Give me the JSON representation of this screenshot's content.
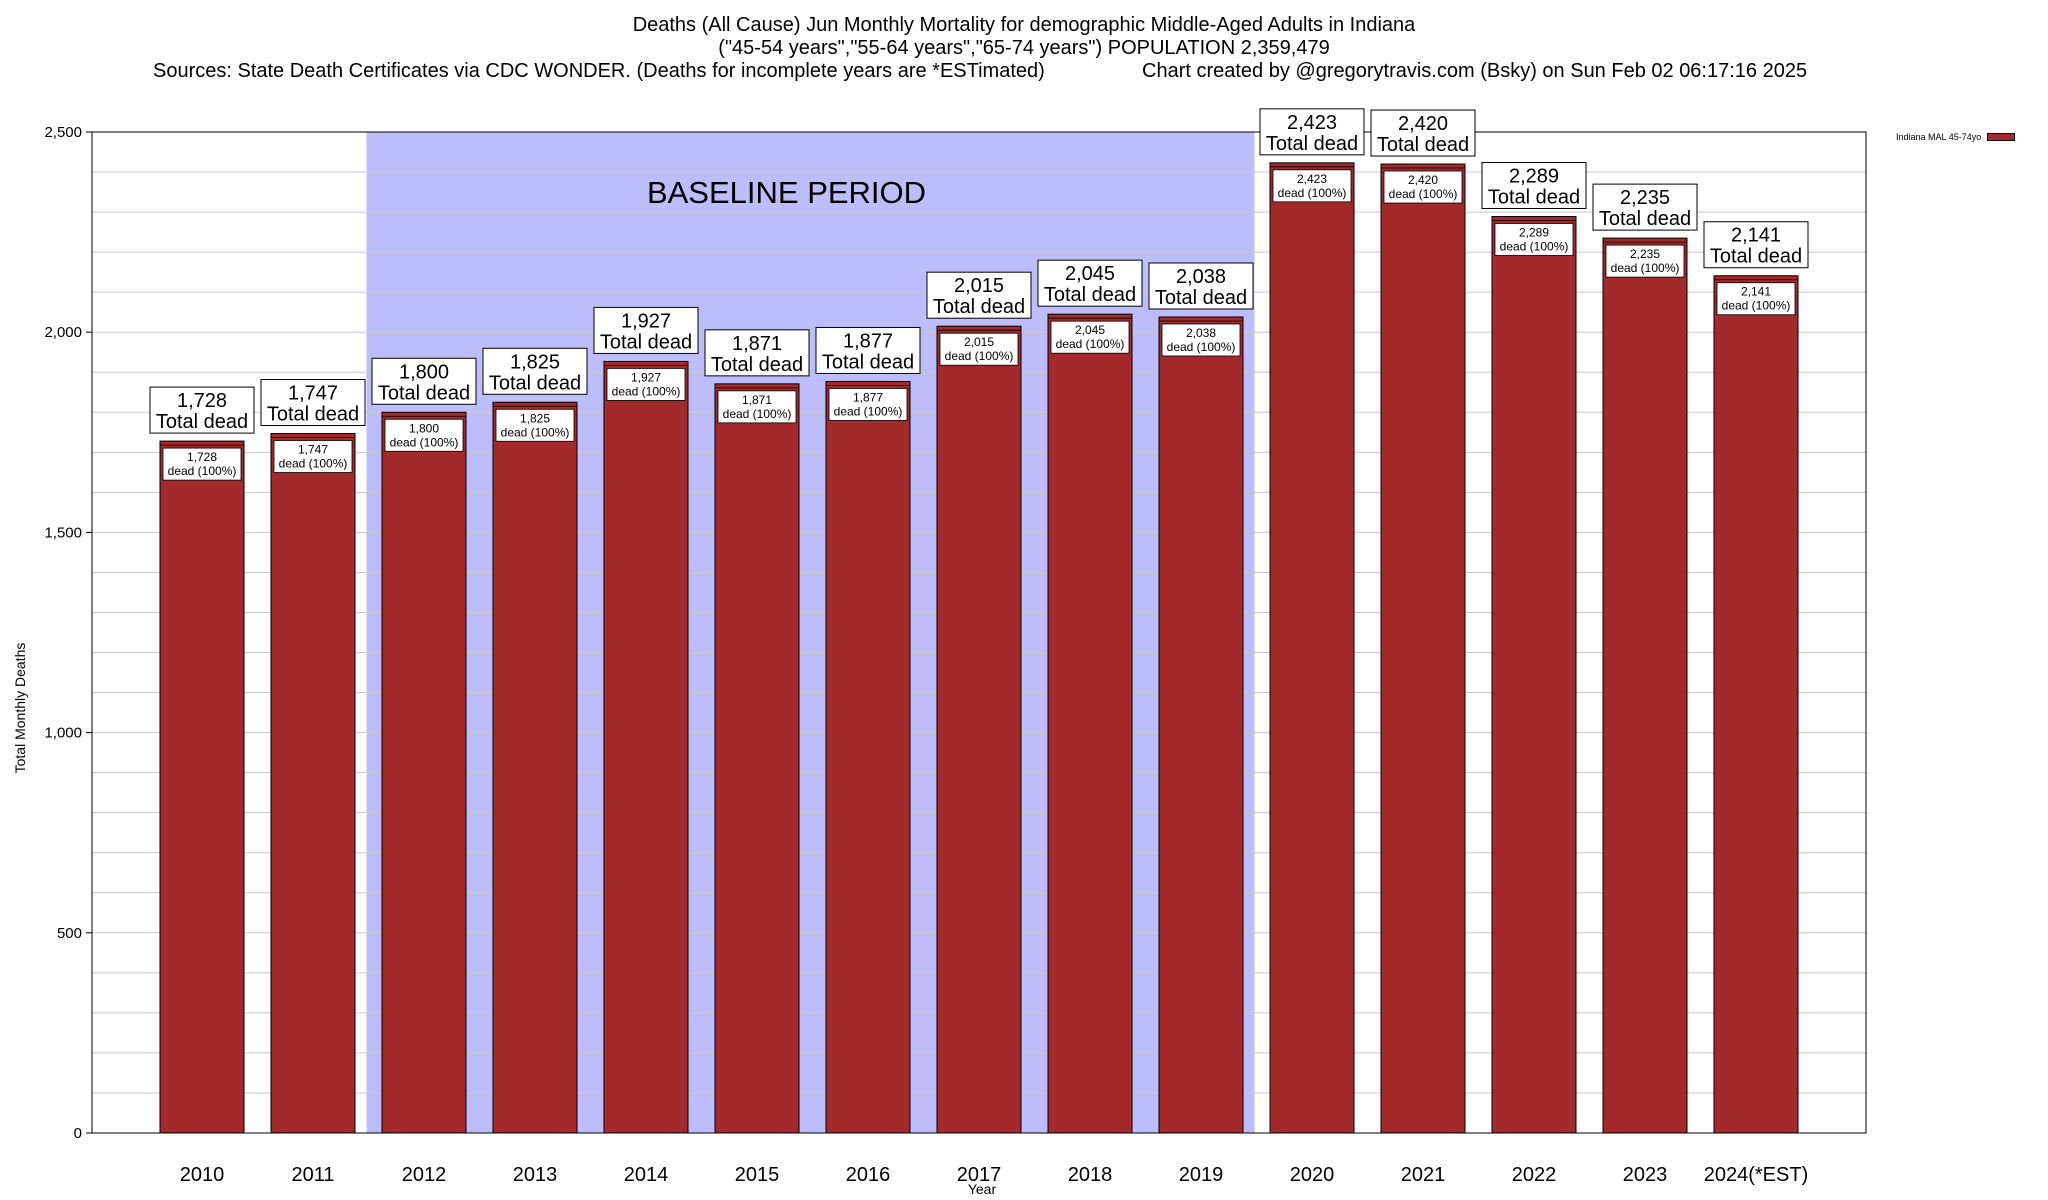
{
  "title": {
    "line1": "Deaths (All Cause) Jun Monthly Mortality for demographic Middle-Aged Adults in Indiana",
    "line2": "(\"45-54 years\",\"55-64 years\",\"65-74 years\") POPULATION 2,359,479",
    "line3_left": "Sources: State Death Certificates via CDC WONDER. (Deaths for incomplete years are *ESTimated)",
    "line3_right": "Chart created by @gregorytravis.com (Bsky) on Sun Feb 02 06:17:16 2025"
  },
  "colors": {
    "bar": "#a3292b",
    "baseline_shade": "#bdbdfb",
    "gridline": "#c8c8c8"
  },
  "chart_data": {
    "type": "bar",
    "title": "Deaths (All Cause) Jun Monthly Mortality for demographic Middle-Aged Adults in Indiana",
    "xlabel": "Year",
    "ylabel": "Total Monthly Deaths",
    "ylim": [
      0,
      2500
    ],
    "yticks": [
      0,
      500,
      1000,
      1500,
      2000,
      2500
    ],
    "ytick_labels": [
      "0",
      "500",
      "1,000",
      "1,500",
      "2,000",
      "2,500"
    ],
    "grid": true,
    "legend_position": "top-right",
    "categories": [
      "2010",
      "2011",
      "2012",
      "2013",
      "2014",
      "2015",
      "2016",
      "2017",
      "2018",
      "2019",
      "2020",
      "2021",
      "2022",
      "2023",
      "2024(*EST)"
    ],
    "series": [
      {
        "name": "Indiana MAL 45-74yo",
        "values": [
          1728,
          1747,
          1800,
          1825,
          1927,
          1871,
          1877,
          2015,
          2045,
          2038,
          2423,
          2420,
          2289,
          2235,
          2141
        ],
        "value_labels": [
          "1,728",
          "1,747",
          "1,800",
          "1,825",
          "1,927",
          "1,871",
          "1,877",
          "2,015",
          "2,045",
          "2,038",
          "2,423",
          "2,420",
          "2,289",
          "2,235",
          "2,141"
        ]
      }
    ],
    "total_label_suffix": "Total dead",
    "inner_label_suffix": "dead (100%)",
    "annotations": [
      {
        "text": "BASELINE PERIOD",
        "from_category": "2012",
        "to_category": "2019"
      }
    ]
  }
}
